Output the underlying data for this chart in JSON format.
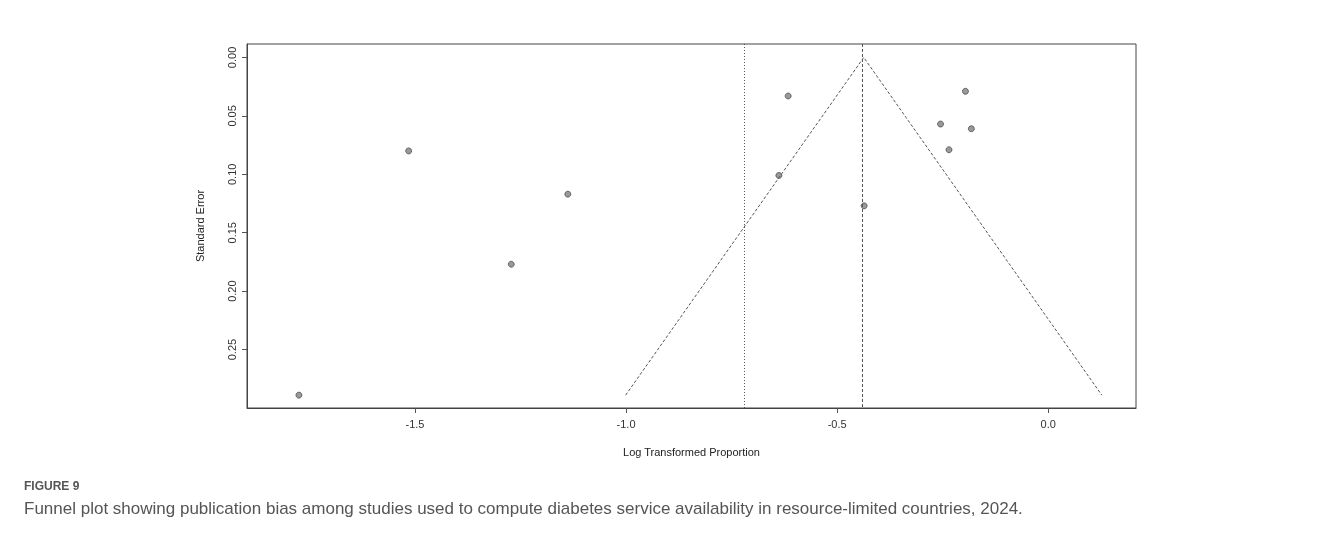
{
  "chart_data": {
    "type": "scatter",
    "title": "FIGURE 9",
    "subtitle": "Funnel plot showing publication bias among studies used to compute diabetes service availability in resource-limited countries, 2024.",
    "xlabel": "Log Transformed Proportion",
    "ylabel": "Standard Error",
    "xlim": [
      -1.898,
      0.208
    ],
    "ylim": [
      0.3,
      -0.0115
    ],
    "xticks": [
      {
        "value": -1.5,
        "label": "-1.5"
      },
      {
        "value": -1.0,
        "label": "-1.0"
      },
      {
        "value": -0.5,
        "label": "-0.5"
      },
      {
        "value": 0,
        "label": "0.0"
      }
    ],
    "yticks": [
      {
        "value": 0,
        "label": "0.00"
      },
      {
        "value": 0.05,
        "label": "0.05"
      },
      {
        "value": 0.1,
        "label": "0.10"
      },
      {
        "value": 0.15,
        "label": "0.15"
      },
      {
        "value": 0.2,
        "label": "0.20"
      },
      {
        "value": 0.25,
        "label": "0.25"
      }
    ],
    "series": [
      {
        "color": "#808080",
        "marker": "circle",
        "x": [
          -1.775,
          -1.515,
          -1.272,
          -1.138,
          -0.616,
          -0.638,
          -0.436,
          -0.255,
          -0.235,
          -0.196,
          -0.182
        ],
        "values": [
          0.289,
          0.08,
          0.177,
          0.117,
          0.033,
          0.101,
          0.127,
          0.057,
          0.079,
          0.029,
          0.061
        ]
      },
      {
        "type": "line",
        "color": "#555555",
        "line_style": "dashed",
        "marker": "none",
        "x": [
          -1.001,
          -0.437,
          0.127
        ],
        "values": [
          0.289,
          0,
          0.289
        ]
      }
    ],
    "ref_lines": [
      {
        "axis": "x",
        "value": -0.437,
        "label": null,
        "color": "#555555",
        "line_style": "dashed"
      },
      {
        "axis": "x",
        "value": -0.724,
        "label": null,
        "color": "#555555",
        "line_style": "dotted"
      }
    ],
    "grid": false
  }
}
